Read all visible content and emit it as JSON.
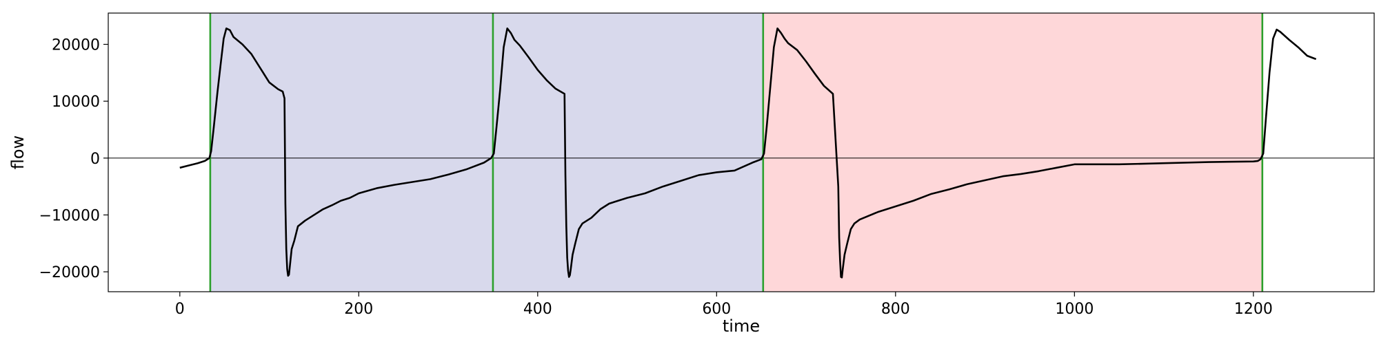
{
  "chart_data": {
    "type": "line",
    "title": "",
    "xlabel": "time",
    "ylabel": "flow",
    "xlim": [
      -80,
      1335
    ],
    "ylim": [
      -23500,
      25500
    ],
    "xticks": [
      0,
      200,
      400,
      600,
      800,
      1000,
      1200
    ],
    "yticks": [
      -20000,
      -10000,
      0,
      10000,
      20000
    ],
    "x_tick_labels": [
      "0",
      "200",
      "400",
      "600",
      "800",
      "1000",
      "1200"
    ],
    "y_tick_labels": [
      "−20000",
      "−10000",
      "0",
      "10000",
      "20000"
    ],
    "grid": false,
    "zero_line": true,
    "vertical_lines": [
      34,
      350,
      652,
      1210
    ],
    "vertical_line_color": "#2ca02c",
    "shaded_regions": [
      {
        "start": 34,
        "end": 350,
        "color": "#d8d9ec"
      },
      {
        "start": 350,
        "end": 652,
        "color": "#d8d9ec"
      },
      {
        "start": 652,
        "end": 1210,
        "color": "#fed7d9"
      }
    ],
    "line_color": "#000000",
    "series": [
      {
        "x": [
          0,
          10,
          20,
          28,
          33,
          35,
          38,
          42,
          46,
          49,
          52,
          56,
          60,
          70,
          80,
          90,
          100,
          110,
          115,
          117,
          118,
          119,
          120,
          121,
          122,
          123,
          125,
          128,
          132,
          136,
          140,
          150,
          160,
          170,
          180,
          190,
          200,
          220,
          240,
          260,
          280,
          300,
          320,
          340,
          348,
          351,
          354,
          358,
          362,
          366,
          370,
          374,
          380,
          390,
          400,
          410,
          420,
          430,
          431,
          432,
          433,
          434,
          435,
          436,
          437,
          439,
          442,
          446,
          450,
          460,
          470,
          480,
          500,
          520,
          540,
          560,
          580,
          600,
          620,
          640,
          650,
          653,
          656,
          660,
          664,
          668,
          672,
          676,
          680,
          690,
          700,
          710,
          720,
          730,
          736,
          737,
          738,
          739,
          740,
          741,
          743,
          746,
          750,
          754,
          760,
          780,
          800,
          820,
          840,
          860,
          880,
          900,
          920,
          940,
          960,
          980,
          1000,
          1050,
          1100,
          1150,
          1200,
          1205,
          1208,
          1211,
          1214,
          1218,
          1222,
          1226,
          1230,
          1240,
          1250,
          1260,
          1270
        ],
        "y": [
          -1700,
          -1300,
          -900,
          -500,
          0,
          1200,
          5500,
          11500,
          17000,
          21000,
          22800,
          22500,
          21300,
          20000,
          18300,
          15800,
          13300,
          12100,
          11700,
          10500,
          -8000,
          -16000,
          -19500,
          -20700,
          -20500,
          -19000,
          -16000,
          -14500,
          -12000,
          -11500,
          -11000,
          -10000,
          -9000,
          -8300,
          -7500,
          -7000,
          -6200,
          -5300,
          -4700,
          -4200,
          -3700,
          -2900,
          -2000,
          -800,
          0,
          800,
          5500,
          12000,
          19500,
          22800,
          22000,
          20800,
          19800,
          17700,
          15500,
          13700,
          12200,
          11300,
          -3000,
          -12000,
          -17500,
          -19800,
          -20900,
          -20600,
          -19500,
          -17000,
          -15000,
          -12500,
          -11500,
          -10500,
          -9000,
          -8000,
          -7000,
          -6200,
          -5000,
          -4000,
          -3000,
          -2500,
          -2200,
          -800,
          -200,
          800,
          5500,
          12500,
          19500,
          22800,
          22000,
          21000,
          20200,
          19000,
          17000,
          14800,
          12700,
          11300,
          -5000,
          -14000,
          -18000,
          -20900,
          -21000,
          -19500,
          -17000,
          -15000,
          -12500,
          -11500,
          -10800,
          -9500,
          -8500,
          -7500,
          -6300,
          -5500,
          -4600,
          -3900,
          -3200,
          -2800,
          -2300,
          -1700,
          -1100,
          -1100,
          -900,
          -700,
          -600,
          -500,
          -200,
          800,
          7000,
          15000,
          21000,
          22600,
          22200,
          20800,
          19500,
          18000,
          17400
        ]
      }
    ]
  }
}
